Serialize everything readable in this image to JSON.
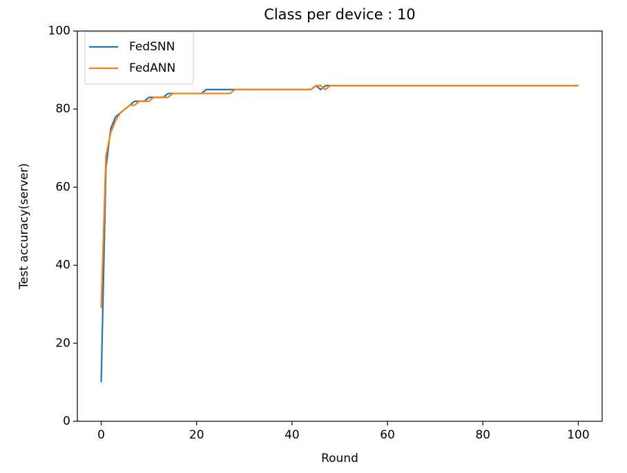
{
  "chart_data": {
    "type": "line",
    "title": "Class per device : 10",
    "x_label": "Round",
    "y_label": "Test accuracy(server)",
    "x": [
      0,
      1,
      2,
      3,
      4,
      5,
      6,
      7,
      8,
      9,
      10,
      11,
      12,
      13,
      14,
      15,
      16,
      17,
      18,
      19,
      20,
      21,
      22,
      23,
      24,
      25,
      26,
      27,
      28,
      29,
      30,
      31,
      32,
      33,
      34,
      35,
      36,
      37,
      38,
      39,
      40,
      41,
      42,
      43,
      44,
      45,
      46,
      47,
      48,
      49,
      50,
      51,
      52,
      53,
      54,
      55,
      56,
      57,
      58,
      59,
      60,
      61,
      62,
      63,
      64,
      65,
      66,
      67,
      68,
      69,
      70,
      71,
      72,
      73,
      74,
      75,
      76,
      77,
      78,
      79,
      80,
      81,
      82,
      83,
      84,
      85,
      86,
      87,
      88,
      89,
      90,
      91,
      92,
      93,
      94,
      95,
      96,
      97,
      98,
      99,
      100
    ],
    "series": [
      {
        "name": "FedSNN",
        "color": "#1f77b4",
        "values": [
          10,
          65,
          75,
          78,
          79,
          80,
          81,
          82,
          82,
          82,
          83,
          83,
          83,
          83,
          84,
          84,
          84,
          84,
          84,
          84,
          84,
          84,
          85,
          85,
          85,
          85,
          85,
          85,
          85,
          85,
          85,
          85,
          85,
          85,
          85,
          85,
          85,
          85,
          85,
          85,
          85,
          85,
          85,
          85,
          85,
          86,
          85,
          86,
          86,
          86,
          86,
          86,
          86,
          86,
          86,
          86,
          86,
          86,
          86,
          86,
          86,
          86,
          86,
          86,
          86,
          86,
          86,
          86,
          86,
          86,
          86,
          86,
          86,
          86,
          86,
          86,
          86,
          86,
          86,
          86,
          86,
          86,
          86,
          86,
          86,
          86,
          86,
          86,
          86,
          86,
          86,
          86,
          86,
          86,
          86,
          86,
          86,
          86,
          86,
          86,
          86
        ]
      },
      {
        "name": "FedANN",
        "color": "#ff7f0e",
        "values": [
          29,
          68,
          74,
          77,
          79,
          80,
          81,
          81,
          82,
          82,
          82,
          83,
          83,
          83,
          83,
          84,
          84,
          84,
          84,
          84,
          84,
          84,
          84,
          84,
          84,
          84,
          84,
          84,
          85,
          85,
          85,
          85,
          85,
          85,
          85,
          85,
          85,
          85,
          85,
          85,
          85,
          85,
          85,
          85,
          85,
          86,
          86,
          85,
          86,
          86,
          86,
          86,
          86,
          86,
          86,
          86,
          86,
          86,
          86,
          86,
          86,
          86,
          86,
          86,
          86,
          86,
          86,
          86,
          86,
          86,
          86,
          86,
          86,
          86,
          86,
          86,
          86,
          86,
          86,
          86,
          86,
          86,
          86,
          86,
          86,
          86,
          86,
          86,
          86,
          86,
          86,
          86,
          86,
          86,
          86,
          86,
          86,
          86,
          86,
          86,
          86
        ]
      }
    ],
    "xlim": [
      -5,
      105
    ],
    "ylim": [
      0,
      100
    ],
    "xticks": [
      0,
      20,
      40,
      60,
      80,
      100
    ],
    "yticks": [
      0,
      20,
      40,
      60,
      80,
      100
    ],
    "grid": false,
    "legend": "upper left"
  }
}
